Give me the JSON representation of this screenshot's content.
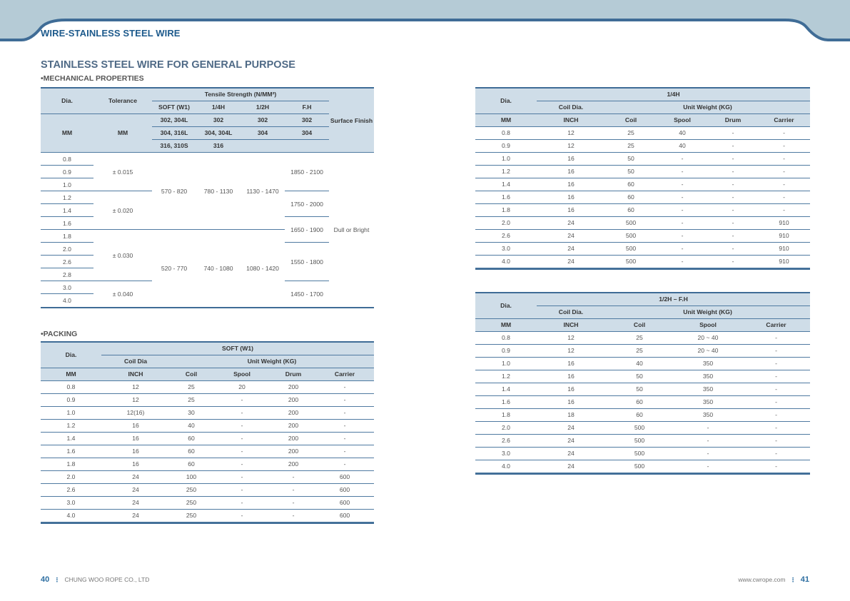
{
  "header": {
    "title": "WIRE-STAINLESS STEEL WIRE"
  },
  "section": {
    "title": "STAINLESS STEEL WIRE FOR GENERAL PURPOSE"
  },
  "mech": {
    "heading": "•MECHANICAL PROPERTIES",
    "h_dia": "Dia.",
    "h_tol": "Tolerance",
    "h_tensile": "Tensile Strength (N/MM²)",
    "h_soft": "SOFT (W1)",
    "h_q": "1/4H",
    "h_h": "1/2H",
    "h_fh": "F.H",
    "h_surface": "Surface Finish",
    "h_mm": "MM",
    "h_mm2": "MM",
    "grades": [
      [
        "302, 304L",
        "302",
        "302",
        "302"
      ],
      [
        "304, 316L",
        "304, 304L",
        "304",
        "304"
      ],
      [
        "316, 310S",
        "316",
        "",
        ""
      ]
    ],
    "dia": [
      "0.8",
      "0.9",
      "1.0",
      "1.2",
      "1.4",
      "1.6",
      "1.8",
      "2.0",
      "2.6",
      "2.8",
      "3.0",
      "4.0"
    ],
    "tol": [
      "± 0.015",
      "± 0.020",
      "± 0.030",
      "± 0.040"
    ],
    "soft": [
      "570 - 820",
      "520 - 770"
    ],
    "qh": [
      "780 - 1130",
      "740 - 1080"
    ],
    "hh": [
      "1130 - 1470",
      "1080 - 1420"
    ],
    "fh": [
      "1850 - 2100",
      "1750 - 2000",
      "1650 - 1900",
      "1550 - 1800",
      "1450 - 1700"
    ],
    "surface": "Dull or Bright"
  },
  "packing": {
    "heading": "•PACKING",
    "h_dia": "Dia.",
    "h_group": "SOFT (W1)",
    "h_coildia": "Coil Dia",
    "h_unit": "Unit Weight (KG)",
    "cols": [
      "MM",
      "INCH",
      "Coil",
      "Spool",
      "Drum",
      "Carrier"
    ],
    "rows": [
      [
        "0.8",
        "12",
        "25",
        "20",
        "200",
        "-"
      ],
      [
        "0.9",
        "12",
        "25",
        "-",
        "200",
        "-"
      ],
      [
        "1.0",
        "12(16)",
        "30",
        "-",
        "200",
        "-"
      ],
      [
        "1.2",
        "16",
        "40",
        "-",
        "200",
        "-"
      ],
      [
        "1.4",
        "16",
        "60",
        "-",
        "200",
        "-"
      ],
      [
        "1.6",
        "16",
        "60",
        "-",
        "200",
        "-"
      ],
      [
        "1.8",
        "16",
        "60",
        "-",
        "200",
        "-"
      ],
      [
        "2.0",
        "24",
        "100",
        "-",
        "-",
        "600"
      ],
      [
        "2.6",
        "24",
        "250",
        "-",
        "-",
        "600"
      ],
      [
        "3.0",
        "24",
        "250",
        "-",
        "-",
        "600"
      ],
      [
        "4.0",
        "24",
        "250",
        "-",
        "-",
        "600"
      ]
    ]
  },
  "quarter": {
    "h_dia": "Dia.",
    "h_group": "1/4H",
    "h_coildia": "Coil Dia.",
    "h_unit": "Unit Weight (KG)",
    "cols": [
      "MM",
      "INCH",
      "Coil",
      "Spool",
      "Drum",
      "Carrier"
    ],
    "rows": [
      [
        "0.8",
        "12",
        "25",
        "40",
        "-",
        "-"
      ],
      [
        "0.9",
        "12",
        "25",
        "40",
        "-",
        "-"
      ],
      [
        "1.0",
        "16",
        "50",
        "-",
        "-",
        "-"
      ],
      [
        "1.2",
        "16",
        "50",
        "-",
        "-",
        "-"
      ],
      [
        "1.4",
        "16",
        "60",
        "-",
        "-",
        "-"
      ],
      [
        "1.6",
        "16",
        "60",
        "-",
        "-",
        "-"
      ],
      [
        "1.8",
        "16",
        "60",
        "-",
        "-",
        "-"
      ],
      [
        "2.0",
        "24",
        "500",
        "-",
        "-",
        "910"
      ],
      [
        "2.6",
        "24",
        "500",
        "-",
        "-",
        "910"
      ],
      [
        "3.0",
        "24",
        "500",
        "-",
        "-",
        "910"
      ],
      [
        "4.0",
        "24",
        "500",
        "-",
        "-",
        "910"
      ]
    ]
  },
  "halffh": {
    "h_dia": "Dia.",
    "h_group": "1/2H – F.H",
    "h_coildia": "Coil Dia.",
    "h_unit": "Unit Weight (KG)",
    "cols": [
      "MM",
      "INCH",
      "Coil",
      "Spool",
      "Carrier"
    ],
    "rows": [
      [
        "0.8",
        "12",
        "25",
        "20 ~ 40",
        "-"
      ],
      [
        "0.9",
        "12",
        "25",
        "20 ~ 40",
        "-"
      ],
      [
        "1.0",
        "16",
        "40",
        "350",
        "-"
      ],
      [
        "1.2",
        "16",
        "50",
        "350",
        "-"
      ],
      [
        "1.4",
        "16",
        "50",
        "350",
        "-"
      ],
      [
        "1.6",
        "16",
        "60",
        "350",
        "-"
      ],
      [
        "1.8",
        "18",
        "60",
        "350",
        "-"
      ],
      [
        "2.0",
        "24",
        "500",
        "-",
        "-"
      ],
      [
        "2.6",
        "24",
        "500",
        "-",
        "-"
      ],
      [
        "3.0",
        "24",
        "500",
        "-",
        "-"
      ],
      [
        "4.0",
        "24",
        "500",
        "-",
        "-"
      ]
    ]
  },
  "footer": {
    "left_page": "40",
    "left_sep": "⋮",
    "company": "CHUNG WOO ROPE CO., LTD",
    "website": "www.cwrope.com",
    "right_sep": "⋮",
    "right_page": "41"
  },
  "colors": {
    "band": "#b5cbd6",
    "band_line": "#3f6c96",
    "title": "#1d5a8c",
    "header_fill": "#cfdde8"
  }
}
